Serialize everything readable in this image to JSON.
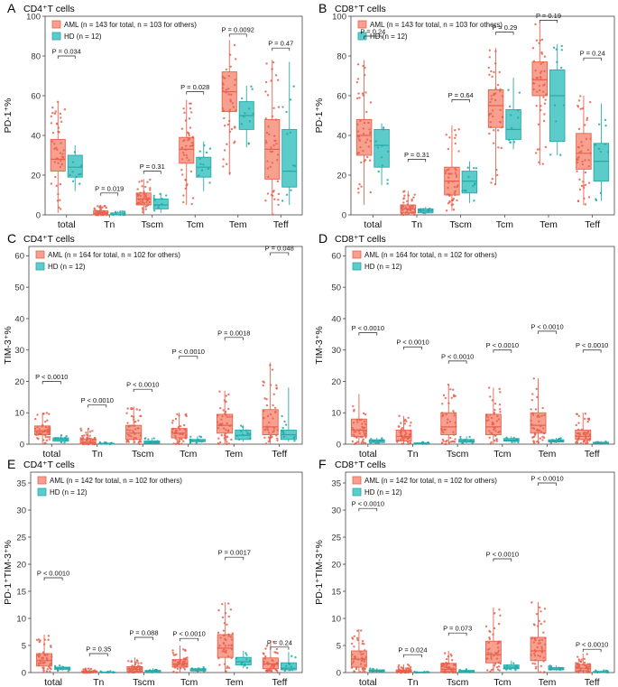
{
  "colors": {
    "aml_fill": "#F8A08F",
    "aml_stroke": "#E8604C",
    "aml_point": "#E8604C",
    "hd_fill": "#5CCCCB",
    "hd_stroke": "#27A9A8",
    "hd_point": "#1FAAA9"
  },
  "chart_data": [
    {
      "panel": "A",
      "title": "CD4⁺T cells",
      "type": "box",
      "ylabel": "PD-1⁺%",
      "ylim": [
        0,
        100
      ],
      "yticks": [
        0,
        20,
        40,
        60,
        80,
        100
      ],
      "categories": [
        "total",
        "Tn",
        "Tscm",
        "Tcm",
        "Tem",
        "Teff"
      ],
      "legend": [
        "AML (n = 143 for total, n = 103 for others)",
        "HD (n = 12)"
      ],
      "series": [
        {
          "name": "AML",
          "boxes": [
            [
              1,
              22,
              28,
              38,
              57
            ],
            [
              0,
              0,
              1,
              2,
              5
            ],
            [
              0,
              5,
              8,
              11,
              18
            ],
            [
              5,
              26,
              33,
              39,
              58
            ],
            [
              20,
              52,
              62,
              72,
              88
            ],
            [
              0,
              18,
              33,
              48,
              78
            ]
          ]
        },
        {
          "name": "HD",
          "boxes": [
            [
              12,
              19,
              24,
              30,
              35
            ],
            [
              0,
              0,
              0,
              1,
              2
            ],
            [
              1,
              3,
              5,
              8,
              11
            ],
            [
              12,
              19,
              24,
              29,
              37
            ],
            [
              34,
              43,
              50,
              57,
              65
            ],
            [
              5,
              14,
              22,
              43,
              77
            ]
          ]
        }
      ],
      "pvalues": [
        {
          "label": "P = 0.034",
          "y": 80
        },
        {
          "label": "P = 0.019",
          "y": 11
        },
        {
          "label": "P = 0.31",
          "y": 22
        },
        {
          "label": "P = 0.028",
          "y": 62
        },
        {
          "label": "P = 0.0092",
          "y": 91
        },
        {
          "label": "P = 0.47",
          "y": 84
        }
      ]
    },
    {
      "panel": "B",
      "title": "CD8⁺T cells",
      "type": "box",
      "ylabel": "PD-1⁺%",
      "ylim": [
        0,
        100
      ],
      "yticks": [
        0,
        20,
        40,
        60,
        80,
        100
      ],
      "categories": [
        "total",
        "Tn",
        "Tscm",
        "Tcm",
        "Tem",
        "Teff"
      ],
      "legend": [
        "AML (n = 143 for total, n = 103 for others)",
        "HD (n = 12)"
      ],
      "series": [
        {
          "name": "AML",
          "boxes": [
            [
              5,
              30,
              40,
              48,
              78
            ],
            [
              0,
              1,
              3,
              5,
              12
            ],
            [
              2,
              10,
              17,
              24,
              45
            ],
            [
              15,
              44,
              55,
              63,
              84
            ],
            [
              25,
              60,
              68,
              77,
              97
            ],
            [
              5,
              23,
              31,
              41,
              60
            ]
          ]
        },
        {
          "name": "HD",
          "boxes": [
            [
              15,
              24,
              35,
              43,
              46
            ],
            [
              0,
              1,
              2,
              3,
              4
            ],
            [
              6,
              11,
              17,
              22,
              27
            ],
            [
              33,
              38,
              43,
              53,
              69
            ],
            [
              30,
              37,
              60,
              73,
              86
            ],
            [
              7,
              17,
              27,
              36,
              56
            ]
          ]
        }
      ],
      "pvalues": [
        {
          "label": "P = 0.24",
          "y": 90
        },
        {
          "label": "P = 0.31",
          "y": 28
        },
        {
          "label": "P = 0.64",
          "y": 58
        },
        {
          "label": "P = 0.29",
          "y": 92
        },
        {
          "label": "P = 0.19",
          "y": 98
        },
        {
          "label": "P = 0.24",
          "y": 79
        }
      ]
    },
    {
      "panel": "C",
      "title": "CD4⁺T cells",
      "type": "box",
      "ylabel": "TIM-3⁺%",
      "ylim": [
        0,
        63
      ],
      "yticks": [
        0,
        10,
        20,
        30,
        40,
        50,
        60
      ],
      "categories": [
        "total",
        "Tn",
        "Tscm",
        "Tcm",
        "Tem",
        "Teff"
      ],
      "legend": [
        "AML (n = 164 for total, n = 102 for others)",
        "HD (n = 12)"
      ],
      "series": [
        {
          "name": "AML",
          "boxes": [
            [
              0,
              3,
              4.2,
              5.8,
              10
            ],
            [
              0,
              0,
              0.6,
              1.7,
              5
            ],
            [
              0,
              1.5,
              3.5,
              6,
              12
            ],
            [
              0,
              2,
              3.5,
              5,
              10
            ],
            [
              0,
              3.5,
              6,
              9.5,
              17
            ],
            [
              0,
              3,
              5.5,
              11,
              26
            ]
          ]
        },
        {
          "name": "HD",
          "boxes": [
            [
              0.5,
              1,
              1.5,
              2,
              3
            ],
            [
              0,
              0,
              0.1,
              0.3,
              0.8
            ],
            [
              0,
              0.3,
              0.6,
              1,
              2
            ],
            [
              0.3,
              0.8,
              1.1,
              1.5,
              2.5
            ],
            [
              0.8,
              1.5,
              2.8,
              4.5,
              6
            ],
            [
              0.8,
              1.5,
              3,
              4.5,
              18
            ]
          ]
        }
      ],
      "pvalues": [
        {
          "label": "P < 0.0010",
          "y": 20
        },
        {
          "label": "P < 0.0010",
          "y": 12.5
        },
        {
          "label": "P < 0.0010",
          "y": 17.5
        },
        {
          "label": "P < 0.0010",
          "y": 28
        },
        {
          "label": "P = 0.0018",
          "y": 34
        },
        {
          "label": "P = 0.048",
          "y": 61
        }
      ]
    },
    {
      "panel": "D",
      "title": "CD8⁺T cells",
      "type": "box",
      "ylabel": "TIM-3⁺%",
      "ylim": [
        0,
        63
      ],
      "yticks": [
        0,
        10,
        20,
        30,
        40,
        50,
        60
      ],
      "categories": [
        "total",
        "Tn",
        "Tscm",
        "Tcm",
        "Tem",
        "Teff"
      ],
      "legend": [
        "AML (n = 164 for total, n = 102 for others)",
        "HD (n = 12)"
      ],
      "series": [
        {
          "name": "AML",
          "boxes": [
            [
              0,
              2.5,
              4.5,
              8,
              16
            ],
            [
              0,
              1,
              2.5,
              4.5,
              9
            ],
            [
              0,
              3,
              5.5,
              10,
              19
            ],
            [
              0,
              3,
              5.5,
              9.5,
              18
            ],
            [
              0,
              3.5,
              6,
              10,
              21
            ],
            [
              0,
              1.5,
              2.5,
              4.5,
              10
            ]
          ]
        },
        {
          "name": "HD",
          "boxes": [
            [
              0.2,
              0.5,
              1,
              1.4,
              2
            ],
            [
              0,
              0.1,
              0.2,
              0.4,
              0.8
            ],
            [
              0.3,
              0.6,
              1,
              1.5,
              2.5
            ],
            [
              0.5,
              1,
              1.3,
              1.8,
              2.5
            ],
            [
              0.3,
              0.7,
              1,
              1.4,
              2
            ],
            [
              0.1,
              0.2,
              0.4,
              0.6,
              1
            ]
          ]
        }
      ],
      "pvalues": [
        {
          "label": "P < 0.0010",
          "y": 35.5
        },
        {
          "label": "P < 0.0010",
          "y": 31
        },
        {
          "label": "P < 0.0010",
          "y": 26.5
        },
        {
          "label": "P < 0.0010",
          "y": 30
        },
        {
          "label": "P < 0.0010",
          "y": 36
        },
        {
          "label": "P < 0.0010",
          "y": 30
        }
      ]
    },
    {
      "panel": "E",
      "title": "CD4⁺T cells",
      "type": "box",
      "ylabel": "PD-1⁺TIM-3⁺%",
      "ylim": [
        0,
        37
      ],
      "yticks": [
        0,
        5,
        10,
        15,
        20,
        25,
        30,
        35
      ],
      "categories": [
        "total",
        "Tn",
        "Tscm",
        "Tcm",
        "Tem",
        "Teff"
      ],
      "legend": [
        "AML (n = 142 for total, n = 102 for others)",
        "HD (n = 12)"
      ],
      "series": [
        {
          "name": "AML",
          "boxes": [
            [
              0,
              1.2,
              2.2,
              3.5,
              7
            ],
            [
              0,
              0,
              0.1,
              0.3,
              0.8
            ],
            [
              0,
              0.2,
              0.6,
              1.1,
              2.8
            ],
            [
              0,
              1,
              1.6,
              2.4,
              5
            ],
            [
              0,
              2.8,
              4.5,
              7,
              13
            ],
            [
              0,
              0.7,
              1.6,
              2.7,
              6
            ]
          ]
        },
        {
          "name": "HD",
          "boxes": [
            [
              0.3,
              0.6,
              0.8,
              1,
              1.3
            ],
            [
              0,
              0,
              0.05,
              0.1,
              0.3
            ],
            [
              0,
              0.1,
              0.2,
              0.4,
              0.8
            ],
            [
              0.1,
              0.3,
              0.5,
              0.7,
              1
            ],
            [
              0.8,
              1.4,
              2,
              2.8,
              4
            ],
            [
              0.2,
              0.5,
              0.8,
              1.8,
              3.8
            ]
          ]
        }
      ],
      "pvalues": [
        {
          "label": "P < 0.0010",
          "y": 17.5
        },
        {
          "label": "P = 0.35",
          "y": 3.5
        },
        {
          "label": "P = 0.088",
          "y": 6.5
        },
        {
          "label": "P < 0.0010",
          "y": 6.3
        },
        {
          "label": "P = 0.0017",
          "y": 21.3
        },
        {
          "label": "P = 0.24",
          "y": 4.7
        }
      ]
    },
    {
      "panel": "F",
      "title": "CD8⁺T cells",
      "type": "box",
      "ylabel": "PD-1⁺TIM-3⁺%",
      "ylim": [
        0,
        37
      ],
      "yticks": [
        0,
        5,
        10,
        15,
        20,
        25,
        30,
        35
      ],
      "categories": [
        "total",
        "Tn",
        "Tscm",
        "Tcm",
        "Tem",
        "Teff"
      ],
      "legend": [
        "AML (n = 142 for total, n = 102 for others)",
        "HD (n = 12)"
      ],
      "series": [
        {
          "name": "AML",
          "boxes": [
            [
              0,
              1,
              2.5,
              4,
              8
            ],
            [
              0,
              0,
              0.2,
              0.5,
              1.5
            ],
            [
              0,
              0.2,
              0.6,
              1.7,
              4
            ],
            [
              0,
              1.8,
              3.3,
              5.8,
              12
            ],
            [
              0,
              2.2,
              4,
              6.5,
              13
            ],
            [
              0,
              0.3,
              0.8,
              1.5,
              3.5
            ]
          ]
        },
        {
          "name": "HD",
          "boxes": [
            [
              0.1,
              0.2,
              0.3,
              0.5,
              0.8
            ],
            [
              0,
              0,
              0.03,
              0.08,
              0.2
            ],
            [
              0,
              0.1,
              0.2,
              0.4,
              0.8
            ],
            [
              0.4,
              0.7,
              1,
              1.4,
              2.2
            ],
            [
              0.3,
              0.5,
              0.7,
              0.9,
              1.3
            ],
            [
              0,
              0.05,
              0.1,
              0.2,
              0.4
            ]
          ]
        }
      ],
      "pvalues": [
        {
          "label": "P < 0.0010",
          "y": 30.3
        },
        {
          "label": "P = 0.024",
          "y": 3.3
        },
        {
          "label": "P = 0.073",
          "y": 7.3
        },
        {
          "label": "P < 0.0010",
          "y": 21
        },
        {
          "label": "P < 0.0010",
          "y": 35
        },
        {
          "label": "P < 0.0010",
          "y": 4.3
        }
      ]
    }
  ]
}
